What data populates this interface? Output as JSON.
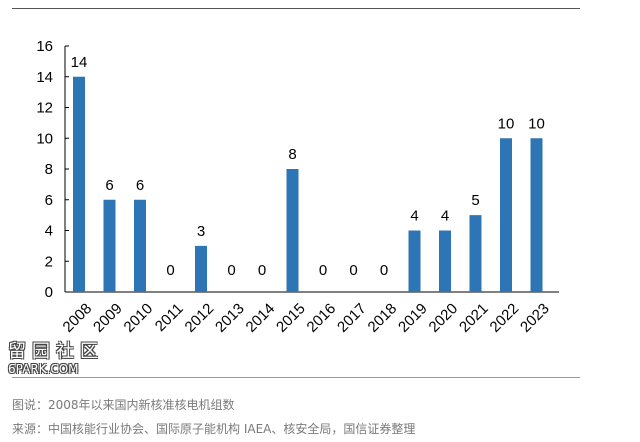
{
  "chart_data": {
    "type": "bar",
    "categories": [
      "2008",
      "2009",
      "2010",
      "2011",
      "2012",
      "2013",
      "2014",
      "2015",
      "2016",
      "2017",
      "2018",
      "2019",
      "2020",
      "2021",
      "2022",
      "2023"
    ],
    "values": [
      14,
      6,
      6,
      0,
      3,
      0,
      0,
      8,
      0,
      0,
      0,
      4,
      4,
      5,
      10,
      10
    ],
    "ylim": [
      0,
      16
    ],
    "yticks": [
      0,
      2,
      4,
      6,
      8,
      10,
      12,
      14,
      16
    ],
    "grid": false,
    "data_labels": true,
    "bar_color": "#2e75b6",
    "title": "",
    "xlabel": "",
    "ylabel": ""
  },
  "caption": "图说：2008年以来国内新核准核电机组数",
  "source": "来源：中国核能行业协会、国际原子能机构 IAEA、核安全局，国信证券整理",
  "watermark": {
    "logo": "留园社区",
    "url": "6PARK.COM"
  }
}
